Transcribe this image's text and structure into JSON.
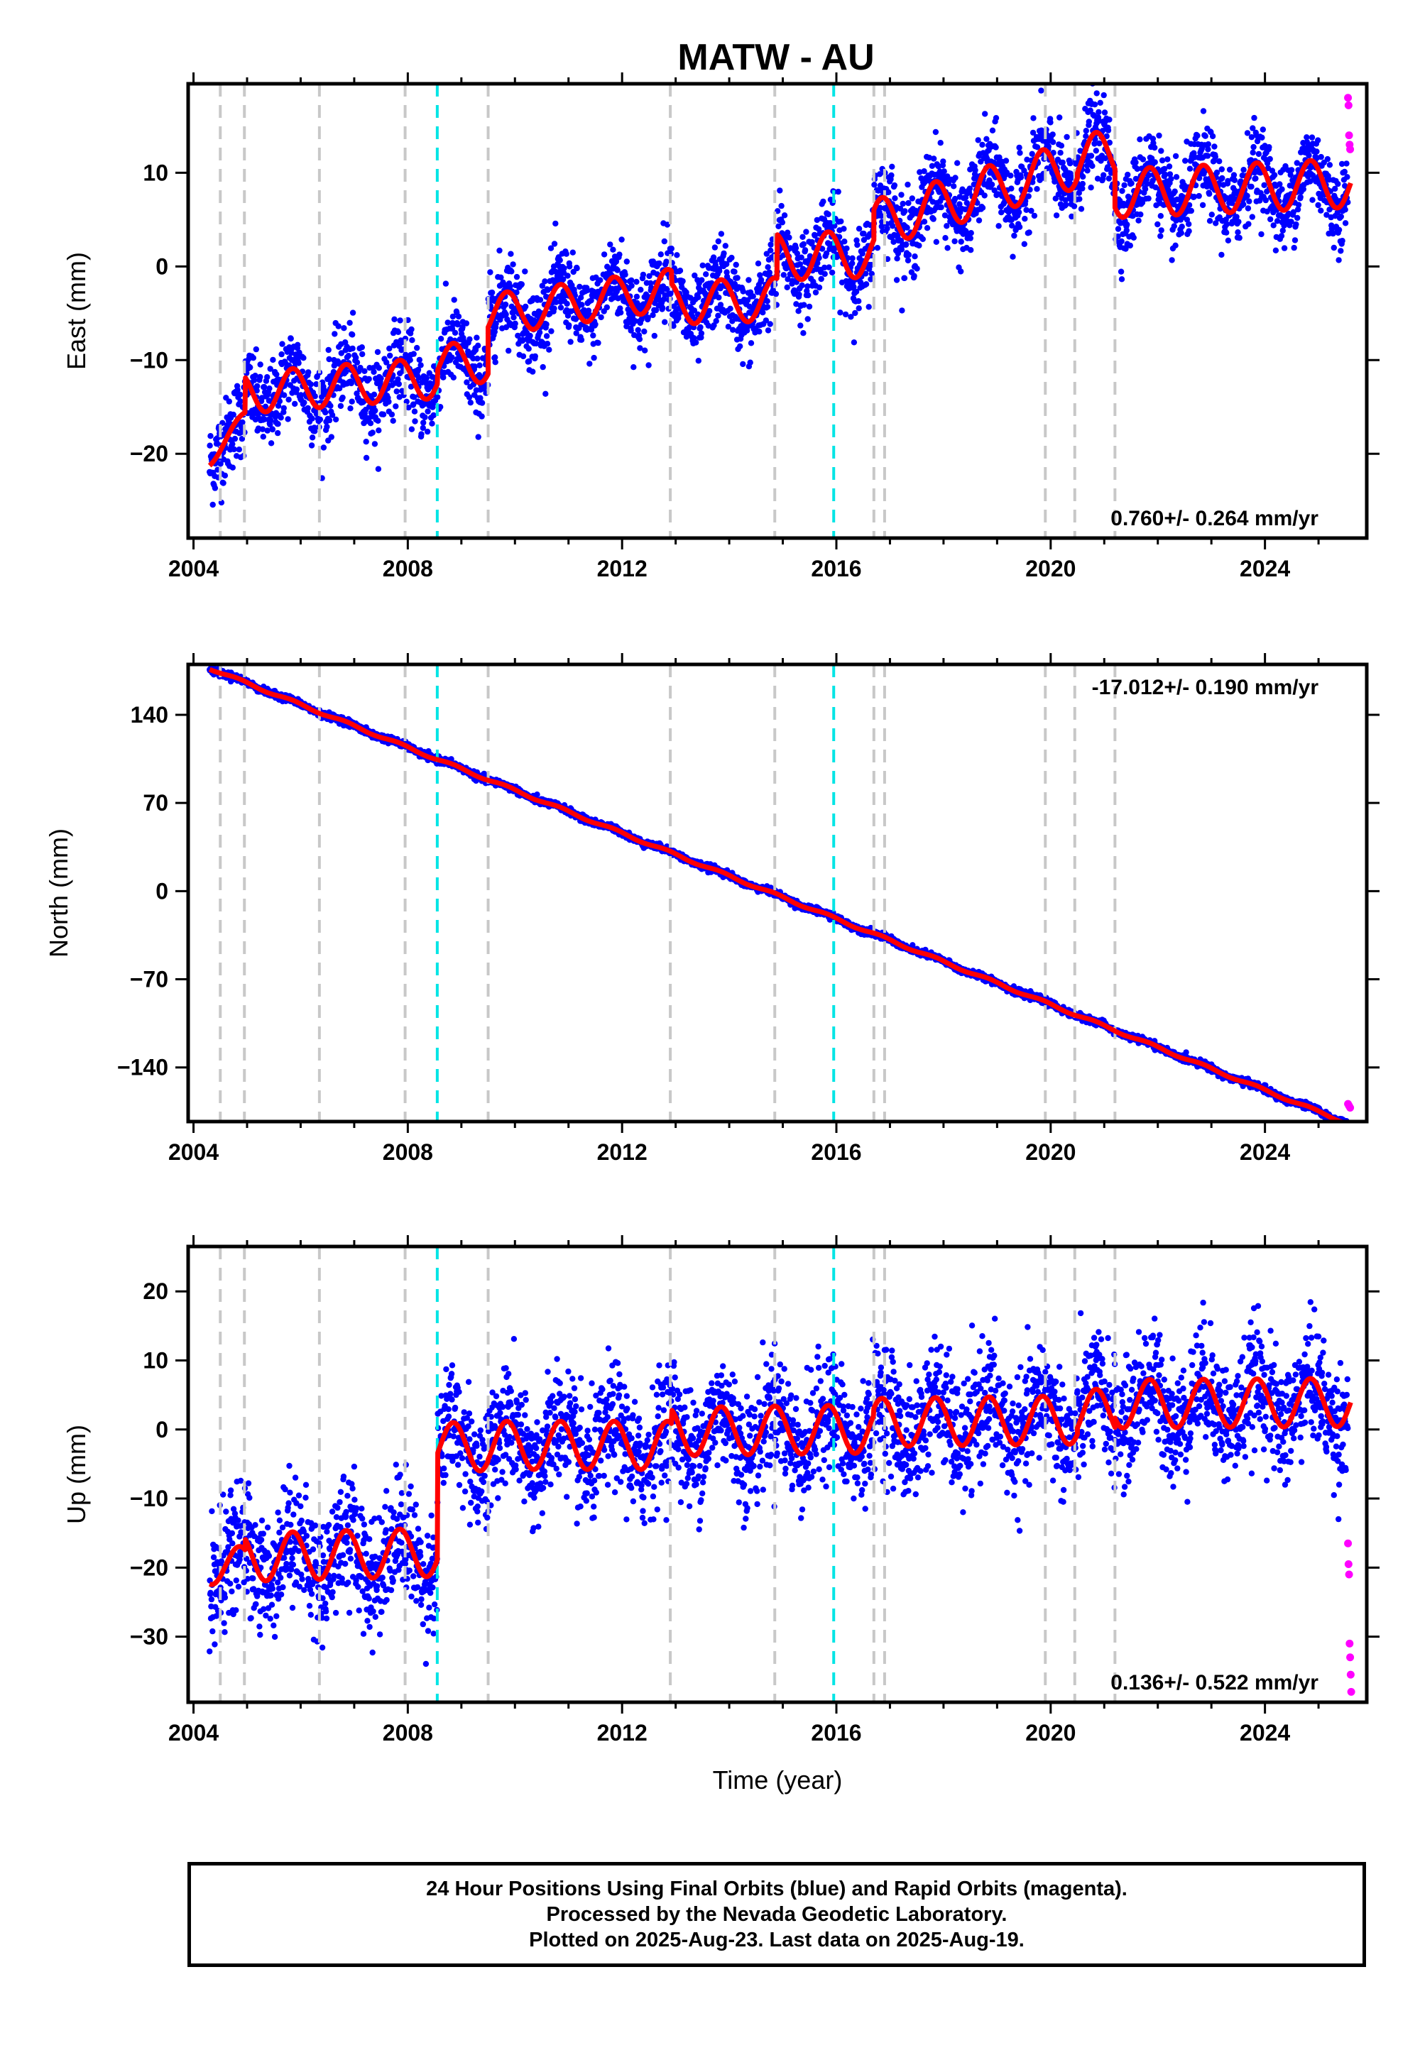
{
  "title": "MATW - AU",
  "colors": {
    "final": "#0000ff",
    "rapid": "#ff00ff",
    "model": "#ff0000",
    "break_gray": "#c8c8c8",
    "break_cyan": "#00e5e5"
  },
  "chart_data": [
    {
      "type": "scatter",
      "panel": "east",
      "ylabel": "East (mm)",
      "xlim": [
        2003.9,
        2025.9
      ],
      "ylim": [
        -29,
        19.5
      ],
      "xticks": [
        2004,
        2008,
        2012,
        2016,
        2020,
        2024
      ],
      "yticks": [
        -20,
        -10,
        0,
        10
      ],
      "rate_label": "0.760+/- 0.264 mm/yr",
      "rate_position": "bottom-right",
      "model_segments": [
        {
          "x0": 2004.3,
          "x1": 2004.97,
          "a": -20.5,
          "b": 6.5,
          "amp": 0.8
        },
        {
          "x0": 2004.97,
          "x1": 2008.56,
          "a": -13.5,
          "b": 0.45,
          "amp": 2.2
        },
        {
          "x0": 2008.56,
          "x1": 2009.5,
          "a": -10.5,
          "b": 0.35,
          "amp": 2.2
        },
        {
          "x0": 2009.5,
          "x1": 2012.93,
          "a": -5.2,
          "b": 0.8,
          "amp": 2.2
        },
        {
          "x0": 2012.93,
          "x1": 2014.9,
          "a": -3.9,
          "b": 0.2,
          "amp": 2.3
        },
        {
          "x0": 2014.9,
          "x1": 2016.7,
          "a": 1.0,
          "b": 0.2,
          "amp": 2.5
        },
        {
          "x0": 2016.7,
          "x1": 2020.5,
          "a": 4.5,
          "b": 1.7,
          "amp": 2.6
        },
        {
          "x0": 2020.5,
          "x1": 2021.2,
          "a": 11.5,
          "b": 0.6,
          "amp": 2.6
        },
        {
          "x0": 2021.2,
          "x1": 2025.6,
          "a": 7.8,
          "b": 0.25,
          "amp": 2.6
        }
      ],
      "scatter_sigma": 2.2,
      "rapid_points": [
        {
          "x": 2025.55,
          "y": 18.0
        },
        {
          "x": 2025.56,
          "y": 17.2
        },
        {
          "x": 2025.57,
          "y": 14.0
        },
        {
          "x": 2025.58,
          "y": 13.0
        },
        {
          "x": 2025.59,
          "y": 12.5
        }
      ]
    },
    {
      "type": "scatter",
      "panel": "north",
      "ylabel": "North (mm)",
      "xlim": [
        2003.9,
        2025.9
      ],
      "ylim": [
        -183,
        180
      ],
      "xticks": [
        2004,
        2008,
        2012,
        2016,
        2020,
        2024
      ],
      "yticks": [
        -140,
        -70,
        0,
        70,
        140
      ],
      "rate_label": "-17.012+/- 0.190 mm/yr",
      "rate_position": "top-right",
      "model_segments": [
        {
          "x0": 2004.3,
          "x1": 2025.6,
          "a": 177.0,
          "b": -17.012,
          "amp": 1.0
        }
      ],
      "scatter_sigma": 1.3,
      "rapid_points": [
        {
          "x": 2025.55,
          "y": -169.0
        },
        {
          "x": 2025.57,
          "y": -170.5
        },
        {
          "x": 2025.59,
          "y": -172.0
        }
      ]
    },
    {
      "type": "scatter",
      "panel": "up",
      "ylabel": "Up (mm)",
      "xlabel": "Time (year)",
      "xlim": [
        2003.9,
        2025.9
      ],
      "ylim": [
        -39.5,
        26.5
      ],
      "xticks": [
        2004,
        2008,
        2012,
        2016,
        2020,
        2024
      ],
      "yticks": [
        -30,
        -20,
        -10,
        0,
        10,
        20
      ],
      "rate_label": "0.136+/- 0.522 mm/yr",
      "rate_position": "bottom-right",
      "model_segments": [
        {
          "x0": 2004.3,
          "x1": 2004.97,
          "a": -20.0,
          "b": 1.0,
          "amp": 2.5
        },
        {
          "x0": 2004.97,
          "x1": 2008.56,
          "a": -18.5,
          "b": 0.2,
          "amp": 3.5
        },
        {
          "x0": 2008.56,
          "x1": 2009.5,
          "a": -2.5,
          "b": 0.0,
          "amp": 3.5
        },
        {
          "x0": 2009.5,
          "x1": 2012.93,
          "a": -2.3,
          "b": 0.0,
          "amp": 3.5
        },
        {
          "x0": 2012.93,
          "x1": 2016.7,
          "a": -0.3,
          "b": 0.1,
          "amp": 3.5
        },
        {
          "x0": 2016.7,
          "x1": 2020.5,
          "a": 1.0,
          "b": 0.1,
          "amp": 3.5
        },
        {
          "x0": 2020.5,
          "x1": 2021.2,
          "a": 2.3,
          "b": 0.1,
          "amp": 3.5
        },
        {
          "x0": 2021.2,
          "x1": 2025.6,
          "a": 3.7,
          "b": 0.05,
          "amp": 3.5
        }
      ],
      "scatter_sigma": 4.3,
      "rapid_points": [
        {
          "x": 2025.55,
          "y": -16.5
        },
        {
          "x": 2025.56,
          "y": -19.5
        },
        {
          "x": 2025.57,
          "y": -21.0
        },
        {
          "x": 2025.58,
          "y": -31.0
        },
        {
          "x": 2025.59,
          "y": -33.0
        },
        {
          "x": 2025.6,
          "y": -35.5
        },
        {
          "x": 2025.61,
          "y": -38.0
        }
      ]
    }
  ],
  "breaks": {
    "gray": [
      2004.5,
      2004.95,
      2006.35,
      2007.95,
      2009.5,
      2012.9,
      2014.85,
      2016.7,
      2016.9,
      2019.9,
      2020.45,
      2021.2
    ],
    "cyan": [
      2008.55,
      2015.95
    ]
  },
  "footer": {
    "line1": "24 Hour Positions Using Final Orbits (blue) and Rapid Orbits (magenta).",
    "line2": "Processed by the Nevada Geodetic Laboratory.",
    "line3": "Plotted on 2025-Aug-23. Last data on 2025-Aug-19."
  }
}
